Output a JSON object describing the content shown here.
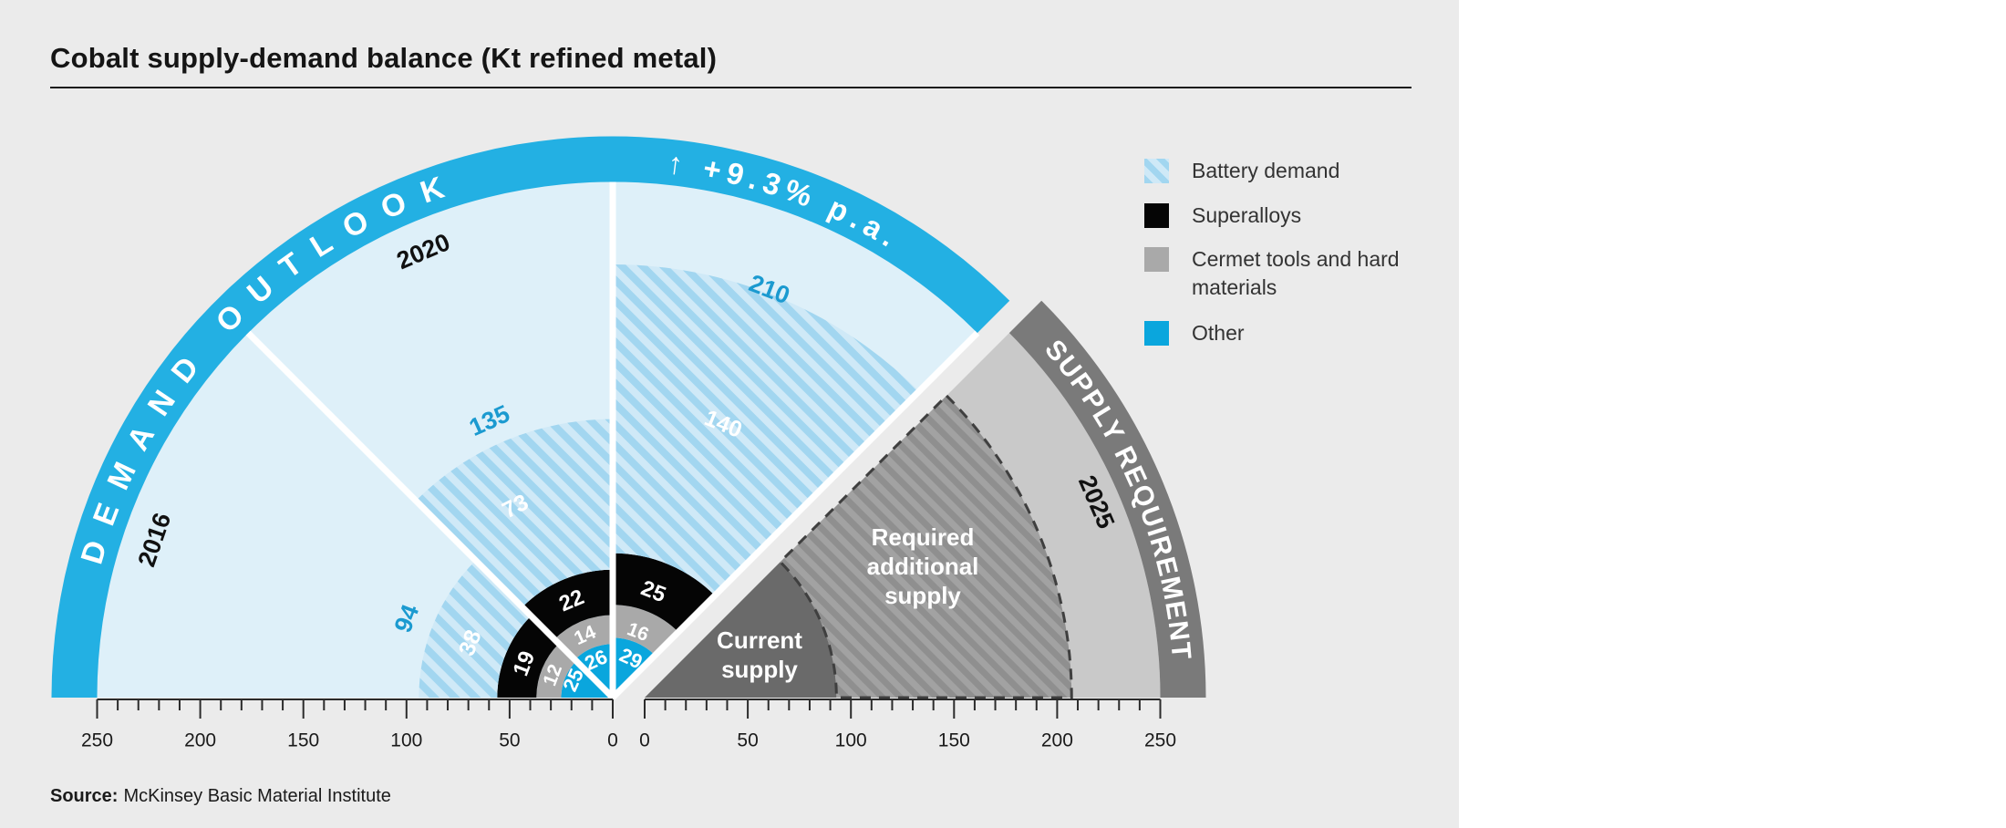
{
  "header": {
    "title": "Cobalt supply-demand balance (Kt refined metal)"
  },
  "legend": {
    "items": [
      {
        "label": "Battery demand",
        "swatch": "battery"
      },
      {
        "label": "Superalloys",
        "swatch": "superalloys"
      },
      {
        "label": "Cermet tools and hard materials",
        "swatch": "cermet"
      },
      {
        "label": "Other",
        "swatch": "other"
      }
    ]
  },
  "source": {
    "prefix": "Source:",
    "text": "McKinsey Basic Material Institute"
  },
  "colors": {
    "background": "#ebebeb",
    "demand_band_cyan": "#23b0e3",
    "other_cyan": "#0aa6dd",
    "demand_light": "#def0f9",
    "battery_hatch_base": "#cfe9f7",
    "battery_hatch_stripe": "#a2d6f0",
    "superalloys_black": "#050505",
    "cermet_gray": "#a9a9a9",
    "supply_bg_gray": "#c9c9c9",
    "supply_band_gray": "#7a7a7a",
    "current_supply_gray": "#6a6a6a",
    "required_hatch_base": "#a2a2a2",
    "required_hatch_stripe": "#8f8f8f",
    "dashed_outline": "#3f3f3f",
    "number_blue": "#1b9ad0",
    "axis_text": "#1a1a1a",
    "white": "#ffffff"
  },
  "chart_data": {
    "type": "polar-stacked-fan",
    "title": "Cobalt supply-demand balance (Kt refined metal)",
    "units": "Kt refined metal",
    "axis": {
      "min": 0,
      "max": 250,
      "major_step": 50,
      "minor_step": 10,
      "left_ticks": [
        250,
        200,
        150,
        100,
        50,
        0
      ],
      "right_ticks": [
        0,
        50,
        100,
        150,
        200,
        250
      ]
    },
    "stack_order": [
      "other",
      "cermet",
      "superalloys",
      "battery"
    ],
    "demand": {
      "band_label": "DEMAND OUTLOOK",
      "growth_label": "↑ +9.3% p.a.",
      "sectors": [
        {
          "year_label": "2016",
          "total": 94,
          "values": {
            "other": 25,
            "cermet": 12,
            "superalloys": 19,
            "battery": 38
          },
          "angle_start_deg": 180,
          "angle_end_deg": 135
        },
        {
          "year_label": "2020",
          "total": 135,
          "values": {
            "other": 26,
            "cermet": 14,
            "superalloys": 22,
            "battery": 73
          },
          "angle_start_deg": 135,
          "angle_end_deg": 90
        },
        {
          "year_label": "",
          "total": 210,
          "values": {
            "other": 29,
            "cermet": 16,
            "superalloys": 25,
            "battery": 140
          },
          "angle_start_deg": 90,
          "angle_end_deg": 45
        }
      ]
    },
    "supply": {
      "band_label": "SUPPLY REQUIREMENT",
      "year_label": "2025",
      "angle_start_deg": 45,
      "angle_end_deg": 0,
      "current_supply": {
        "label_lines": [
          "Current",
          "supply"
        ],
        "value_est": 93
      },
      "required_additional_supply": {
        "label_lines": [
          "Required",
          "additional",
          "supply"
        ],
        "outer_est": 207
      }
    }
  }
}
